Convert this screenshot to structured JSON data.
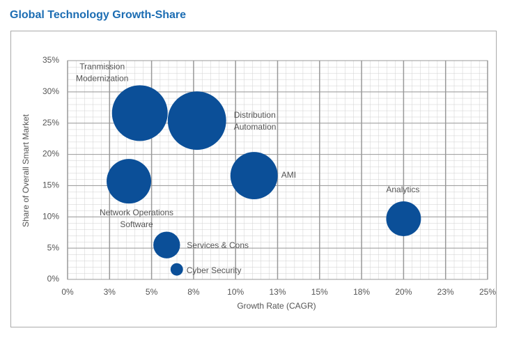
{
  "chart_data": {
    "type": "bubble",
    "title": "Global Technology Growth-Share",
    "x_label": "Growth Rate (CAGR)",
    "y_label": "Share of Overall Smart Market",
    "color": "#0b4f98",
    "grid": true,
    "xlim": [
      0,
      25
    ],
    "ylim": [
      0,
      35
    ],
    "xticks": [
      {
        "value": 0,
        "label": "0%"
      },
      {
        "value": 2.5,
        "label": "3%"
      },
      {
        "value": 5,
        "label": "5%"
      },
      {
        "value": 7.5,
        "label": "8%"
      },
      {
        "value": 10,
        "label": "10%"
      },
      {
        "value": 12.5,
        "label": "13%"
      },
      {
        "value": 15,
        "label": "15%"
      },
      {
        "value": 17.5,
        "label": "18%"
      },
      {
        "value": 20,
        "label": "20%"
      },
      {
        "value": 22.5,
        "label": "23%"
      },
      {
        "value": 25,
        "label": "25%"
      }
    ],
    "yticks": [
      {
        "value": 0,
        "label": "0%"
      },
      {
        "value": 5,
        "label": "5%"
      },
      {
        "value": 10,
        "label": "10%"
      },
      {
        "value": 15,
        "label": "15%"
      },
      {
        "value": 20,
        "label": "20%"
      },
      {
        "value": 25,
        "label": "25%"
      },
      {
        "value": 30,
        "label": "30%"
      },
      {
        "value": 35,
        "label": "35%"
      }
    ],
    "points": [
      {
        "label": "Tranmission\nModernization",
        "x": 4.3,
        "y": 26.6,
        "size": 100
      },
      {
        "label": "Distribution\nAutomation",
        "x": 7.7,
        "y": 25.4,
        "size": 110
      },
      {
        "label": "Network Operations\nSoftware",
        "x": 3.65,
        "y": 15.7,
        "size": 64
      },
      {
        "label": "AMI",
        "x": 11.1,
        "y": 16.6,
        "size": 72
      },
      {
        "label": "Analytics",
        "x": 20.0,
        "y": 9.7,
        "size": 39
      },
      {
        "label": "Services & Cons",
        "x": 5.9,
        "y": 5.5,
        "size": 23
      },
      {
        "label": "Cyber Security",
        "x": 6.5,
        "y": 1.6,
        "size": 5
      }
    ]
  }
}
